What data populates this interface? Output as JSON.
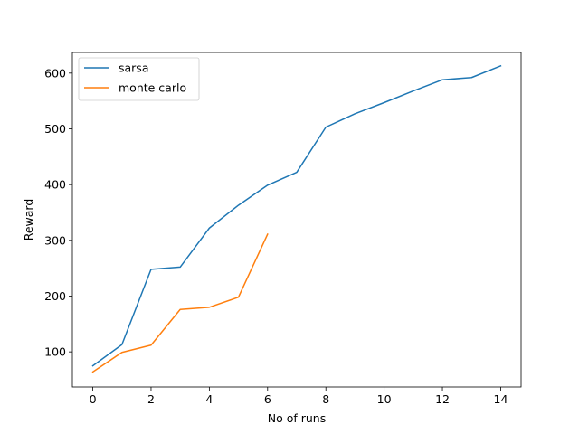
{
  "chart_data": {
    "type": "line",
    "title": "",
    "xlabel": "No of runs",
    "ylabel": "Reward",
    "xlim": [
      -0.7,
      14.7
    ],
    "ylim": [
      37,
      637
    ],
    "xticks": [
      0,
      2,
      4,
      6,
      8,
      10,
      12,
      14
    ],
    "yticks": [
      100,
      200,
      300,
      400,
      500,
      600
    ],
    "xtick_labels": [
      "0",
      "2",
      "4",
      "6",
      "8",
      "10",
      "12",
      "14"
    ],
    "ytick_labels": [
      "100",
      "200",
      "300",
      "400",
      "500",
      "600"
    ],
    "grid": false,
    "legend_position": "top-left",
    "series": [
      {
        "name": "sarsa",
        "color": "#1f77b4",
        "x": [
          0,
          1,
          2,
          3,
          4,
          5,
          6,
          7,
          8,
          9,
          10,
          11,
          12,
          13,
          14
        ],
        "values": [
          75,
          113,
          248,
          252,
          322,
          363,
          399,
          422,
          503,
          527,
          547,
          568,
          588,
          592,
          613
        ]
      },
      {
        "name": "monte carlo",
        "color": "#ff7f0e",
        "x": [
          0,
          1,
          2,
          3,
          4,
          5,
          6
        ],
        "values": [
          64,
          99,
          112,
          176,
          180,
          198,
          311
        ]
      }
    ]
  }
}
